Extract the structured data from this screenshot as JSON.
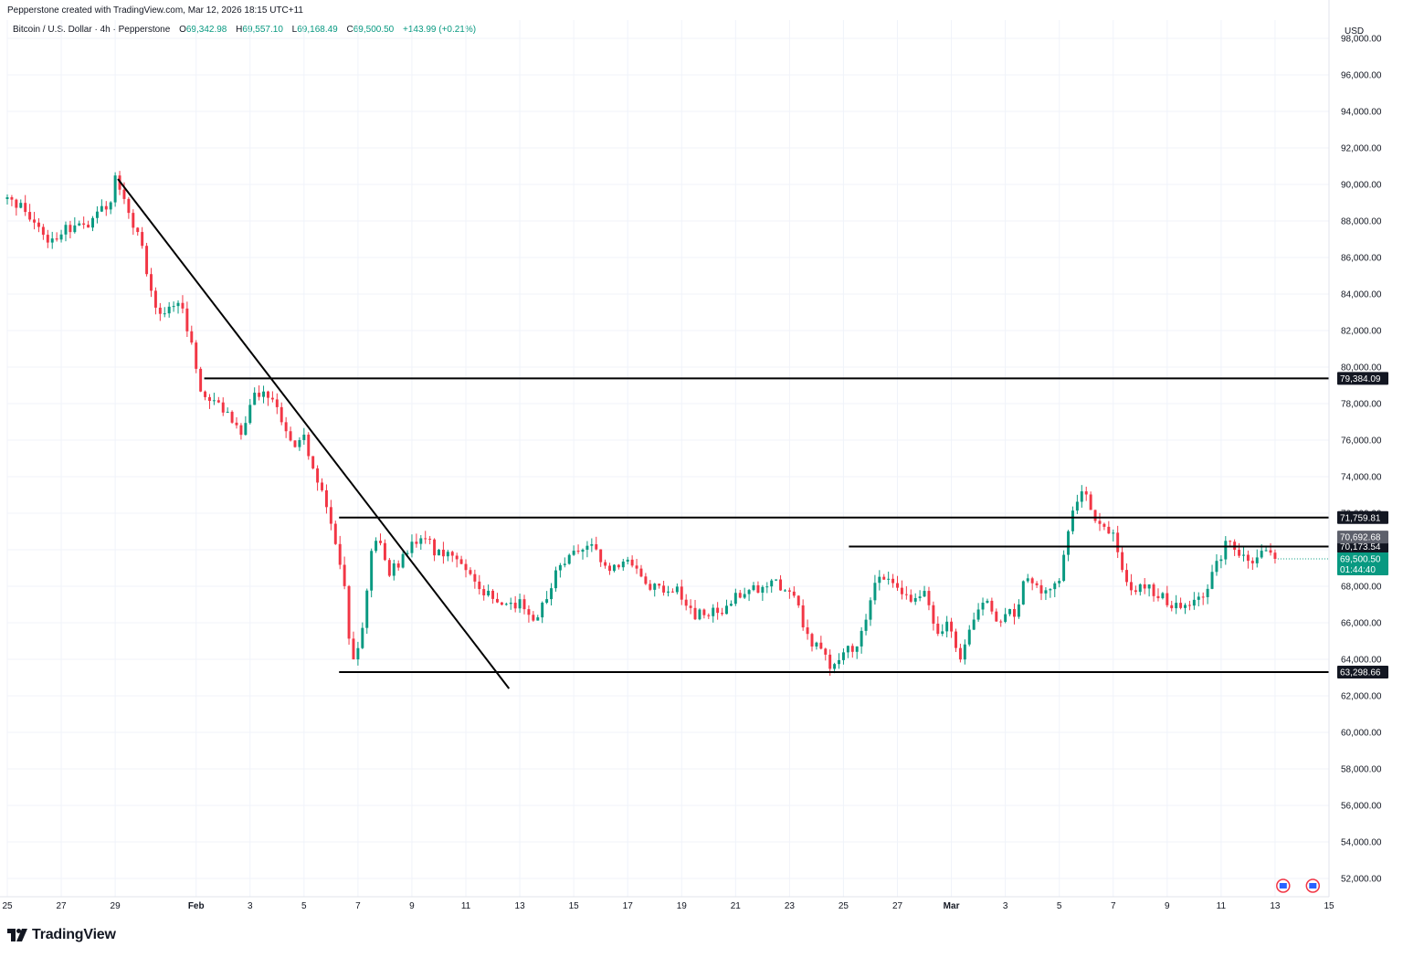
{
  "credit": "Pepperstone created with TradingView.com, Mar 12, 2026 18:15 UTC+11",
  "legend": {
    "symbol": "Bitcoin / U.S. Dollar · 4h · Pepperstone",
    "o_label": "O",
    "o_value": "69,342.98",
    "h_label": "H",
    "h_value": "69,557.10",
    "l_label": "L",
    "l_value": "69,168.49",
    "c_label": "C",
    "c_value": "69,500.50",
    "change": "+143.99 (+0.21%)"
  },
  "brand": "TradingView",
  "colors": {
    "up": "#089981",
    "down": "#f23645",
    "line": "#000000",
    "grid": "#f0f3fa"
  },
  "chart_data": {
    "type": "candlestick",
    "currency": "USD",
    "y_ticks": [
      "52,000.00",
      "54,000.00",
      "56,000.00",
      "58,000.00",
      "60,000.00",
      "62,000.00",
      "64,000.00",
      "66,000.00",
      "68,000.00",
      "70,000.00",
      "72,000.00",
      "74,000.00",
      "76,000.00",
      "78,000.00",
      "80,000.00",
      "82,000.00",
      "84,000.00",
      "86,000.00",
      "88,000.00",
      "90,000.00",
      "92,000.00",
      "94,000.00",
      "96,000.00",
      "98,000.00"
    ],
    "ylim": [
      51000,
      99000
    ],
    "x_ticks": [
      "25",
      "27",
      "29",
      "Feb",
      "3",
      "5",
      "7",
      "9",
      "11",
      "13",
      "15",
      "17",
      "19",
      "21",
      "23",
      "25",
      "27",
      "Mar",
      "3",
      "5",
      "7",
      "9",
      "11",
      "13",
      "15"
    ],
    "x_tick_days": [
      -7,
      -5,
      -3,
      0,
      2,
      4,
      6,
      8,
      10,
      12,
      14,
      16,
      18,
      20,
      22,
      24,
      26,
      28,
      30,
      32,
      34,
      36,
      38,
      40,
      42
    ],
    "xlim": [
      -7,
      42
    ],
    "anchors": [
      [
        -7.0,
        89200
      ],
      [
        -6.0,
        88200
      ],
      [
        -5.5,
        86600
      ],
      [
        -4.8,
        87600
      ],
      [
        -4.0,
        87800
      ],
      [
        -3.2,
        89200
      ],
      [
        -3.0,
        90200
      ],
      [
        -2.5,
        88300
      ],
      [
        -2.0,
        86500
      ],
      [
        -1.6,
        83300
      ],
      [
        -1.2,
        82800
      ],
      [
        -0.6,
        83700
      ],
      [
        -0.2,
        81500
      ],
      [
        0.2,
        78700
      ],
      [
        0.6,
        78400
      ],
      [
        1.2,
        77400
      ],
      [
        1.6,
        76300
      ],
      [
        2.2,
        78700
      ],
      [
        2.8,
        78600
      ],
      [
        3.2,
        76500
      ],
      [
        3.6,
        75800
      ],
      [
        4.0,
        76500
      ],
      [
        4.3,
        74400
      ],
      [
        4.8,
        72700
      ],
      [
        5.1,
        70700
      ],
      [
        5.5,
        67700
      ],
      [
        5.8,
        63600
      ],
      [
        6.2,
        66200
      ],
      [
        6.5,
        69600
      ],
      [
        6.8,
        70700
      ],
      [
        7.2,
        68700
      ],
      [
        7.6,
        69300
      ],
      [
        8.0,
        70600
      ],
      [
        8.5,
        70500
      ],
      [
        9.0,
        69700
      ],
      [
        9.5,
        69600
      ],
      [
        10.0,
        69200
      ],
      [
        10.5,
        68000
      ],
      [
        11.0,
        67200
      ],
      [
        11.5,
        66800
      ],
      [
        12.0,
        67300
      ],
      [
        12.5,
        66000
      ],
      [
        13.0,
        67200
      ],
      [
        13.5,
        69200
      ],
      [
        14.0,
        69800
      ],
      [
        14.7,
        70200
      ],
      [
        15.2,
        68700
      ],
      [
        16.0,
        69300
      ],
      [
        16.6,
        68200
      ],
      [
        17.2,
        67800
      ],
      [
        18.0,
        67600
      ],
      [
        18.5,
        66400
      ],
      [
        19.0,
        66600
      ],
      [
        19.6,
        66500
      ],
      [
        20.0,
        67500
      ],
      [
        20.6,
        67800
      ],
      [
        21.2,
        68200
      ],
      [
        21.7,
        68000
      ],
      [
        22.2,
        67700
      ],
      [
        22.6,
        65400
      ],
      [
        23.0,
        64700
      ],
      [
        23.5,
        63600
      ],
      [
        24.0,
        64200
      ],
      [
        24.5,
        64900
      ],
      [
        25.0,
        67200
      ],
      [
        25.3,
        68700
      ],
      [
        25.8,
        68000
      ],
      [
        26.5,
        67100
      ],
      [
        27.0,
        67400
      ],
      [
        27.5,
        65700
      ],
      [
        27.9,
        65800
      ],
      [
        28.3,
        63600
      ],
      [
        28.8,
        66300
      ],
      [
        29.3,
        67100
      ],
      [
        29.7,
        65900
      ],
      [
        30.0,
        66700
      ],
      [
        30.4,
        66100
      ],
      [
        30.7,
        68900
      ],
      [
        31.2,
        67700
      ],
      [
        31.6,
        67900
      ],
      [
        32.0,
        68500
      ],
      [
        32.3,
        71000
      ],
      [
        32.6,
        72900
      ],
      [
        33.0,
        73100
      ],
      [
        33.3,
        71800
      ],
      [
        33.7,
        70900
      ],
      [
        34.0,
        70600
      ],
      [
        34.4,
        68300
      ],
      [
        35.0,
        67900
      ],
      [
        35.5,
        67800
      ],
      [
        36.0,
        67200
      ],
      [
        36.5,
        66800
      ],
      [
        37.0,
        67000
      ],
      [
        37.5,
        67800
      ],
      [
        38.0,
        69800
      ],
      [
        38.3,
        70600
      ],
      [
        38.8,
        69700
      ],
      [
        39.2,
        69400
      ],
      [
        39.6,
        69800
      ],
      [
        40.1,
        69500
      ]
    ],
    "levels": [
      {
        "price": 79384.09,
        "label": "79,384.09",
        "from_day": 0.3,
        "boxed": true
      },
      {
        "price": 71759.81,
        "label": "71,759.81",
        "from_day": 5.3,
        "boxed": true
      },
      {
        "price": 70173.54,
        "label": "70,173.54",
        "from_day": 24.2,
        "boxed": true
      },
      {
        "price": 63298.66,
        "label": "63,298.66",
        "from_day": 5.3,
        "boxed": true
      }
    ],
    "trendline": {
      "start": [
        -2.9,
        90300
      ],
      "end": [
        11.6,
        62400
      ]
    },
    "extra_label": {
      "price": 70692.68,
      "label": "70,692.68"
    },
    "last_price": {
      "price": 69500.5,
      "label": "69,500.50",
      "countdown": "01:44:40"
    }
  }
}
